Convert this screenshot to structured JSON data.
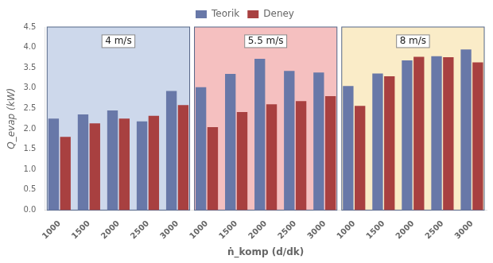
{
  "chart_data": {
    "type": "bar",
    "x_label": "ṅ_komp (d/dk)",
    "y_label": "Q_evap (kW)",
    "categories": [
      "1000",
      "1500",
      "2000",
      "2500",
      "3000",
      "1000",
      "1500",
      "2000",
      "2500",
      "3000",
      "1000",
      "1500",
      "2000",
      "2500",
      "3000"
    ],
    "series": [
      {
        "name": "Teorik",
        "color": "#6878a8",
        "values": [
          2.25,
          2.35,
          2.45,
          2.18,
          2.93,
          3.02,
          3.35,
          3.72,
          3.42,
          3.38,
          3.05,
          3.36,
          3.68,
          3.78,
          3.95
        ]
      },
      {
        "name": "Deney",
        "color": "#a84040",
        "values": [
          1.8,
          2.13,
          2.25,
          2.32,
          2.58,
          2.04,
          2.41,
          2.6,
          2.68,
          2.8,
          2.56,
          3.29,
          3.77,
          3.76,
          3.63
        ]
      }
    ],
    "annotations": [
      {
        "text": "4 m/s",
        "y": 4.15,
        "color": "#cdd8eb"
      },
      {
        "text": "5.5 m/s",
        "y": 4.15,
        "color": "#f5c0c0"
      },
      {
        "text": "8 m/s",
        "y": 4.15,
        "color": "#faecc8"
      }
    ],
    "ylim": [
      0,
      4.5
    ],
    "yticks": [
      {
        "value": 0,
        "label": "0.0"
      },
      0.5,
      {
        "value": 1.0,
        "label": "1.0"
      },
      1.5,
      {
        "value": 2.0,
        "label": "2.0"
      },
      2.5,
      {
        "value": 3.0,
        "label": "3.0"
      },
      3.5,
      {
        "value": 4.0,
        "label": "4.0"
      },
      4.5
    ],
    "grid": false,
    "legend": "top"
  }
}
